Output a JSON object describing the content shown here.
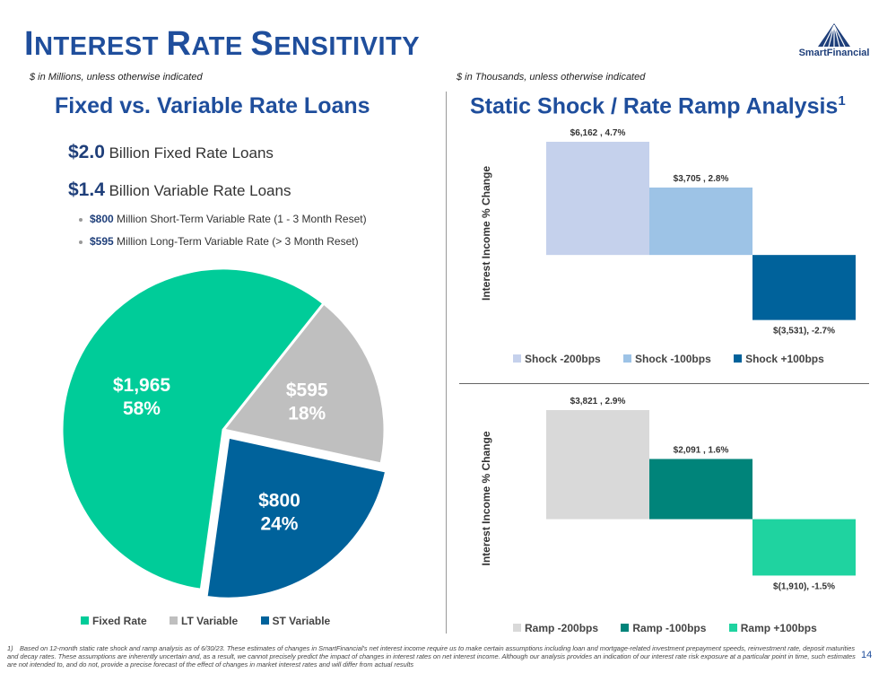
{
  "header": {
    "title_first": "I",
    "title_rest1": "NTEREST ",
    "title_second": "R",
    "title_rest2": "ATE ",
    "title_third": "S",
    "title_rest3": "ENSITIVITY",
    "logo_text": "SmartFinancial",
    "page_number": "14"
  },
  "left": {
    "units_note": "$ in Millions, unless otherwise indicated",
    "section_title": "Fixed vs. Variable Rate Loans",
    "fixed_amount": "$2.0",
    "fixed_text": " Billion Fixed Rate Loans",
    "variable_amount": "$1.4",
    "variable_text": " Billion Variable Rate Loans",
    "bullets": [
      {
        "amount": "$800",
        "text": " Million Short-Term Variable Rate (1 - 3 Month Reset)"
      },
      {
        "amount": "$595",
        "text": " Million Long-Term Variable Rate (> 3 Month Reset)"
      }
    ]
  },
  "right": {
    "units_note": "$ in Thousands, unless otherwise indicated",
    "section_title": "Static Shock / Rate Ramp Analysis",
    "section_sup": "1"
  },
  "footnote": {
    "number": "1)",
    "text": "Based on 12-month static rate shock and ramp analysis as of 6/30/23. These estimates of changes in SmartFinancial's net interest income require us to make certain assumptions including loan and mortgage-related investment prepayment speeds, reinvestment rate, deposit maturities and decay rates. These assumptions are inherently uncertain and, as a result, we cannot precisely predict the impact of changes in interest rates on net interest income. Although our analysis provides an indication of our interest rate risk exposure at a particular point in time, such estimates are not intended to, and do not, provide a precise forecast of the effect of changes in market interest rates and will differ from actual results"
  },
  "colors": {
    "title_blue": "#1f4e9c",
    "fixed": "#00cc99",
    "lt_variable": "#bfbfbf",
    "st_variable": "#00629b",
    "shock_200": "#c5d1ec",
    "shock_100": "#9dc3e6",
    "shock_up100": "#00629b",
    "ramp_200": "#d9d9d9",
    "ramp_100": "#00847a",
    "ramp_up100": "#1fd3a0"
  },
  "chart_data": [
    {
      "type": "pie",
      "title": "Fixed vs. Variable Rate Loans",
      "slices": [
        {
          "name": "Fixed Rate",
          "value": 1965,
          "value_label": "$1,965",
          "pct_label": "58%"
        },
        {
          "name": "LT Variable",
          "value": 595,
          "value_label": "$595",
          "pct_label": "18%"
        },
        {
          "name": "ST Variable",
          "value": 800,
          "value_label": "$800",
          "pct_label": "24%"
        }
      ],
      "legend": [
        "Fixed Rate",
        "LT Variable",
        "ST Variable"
      ],
      "legend_position": "bottom"
    },
    {
      "type": "bar",
      "title": "Static Shock",
      "ylabel": "Interest Income % Change",
      "categories": [
        "Shock -200bps",
        "Shock -100bps",
        "Shock +100bps"
      ],
      "values": [
        4.7,
        2.8,
        -2.7
      ],
      "labels": [
        "$6,162 , 4.7%",
        "$3,705 , 2.8%",
        "$(3,531), -2.7%"
      ],
      "ylim": [
        -2.9,
        4.7
      ],
      "legend_position": "bottom"
    },
    {
      "type": "bar",
      "title": "Rate Ramp",
      "ylabel": "Interest Income % Change",
      "categories": [
        "Ramp -200bps",
        "Ramp -100bps",
        "Ramp +100bps"
      ],
      "values": [
        2.9,
        1.6,
        -1.5
      ],
      "labels": [
        "$3,821 , 2.9%",
        "$2,091 , 1.6%",
        "$(1,910), -1.5%"
      ],
      "ylim": [
        -1.8,
        2.9
      ],
      "legend_position": "bottom"
    }
  ]
}
